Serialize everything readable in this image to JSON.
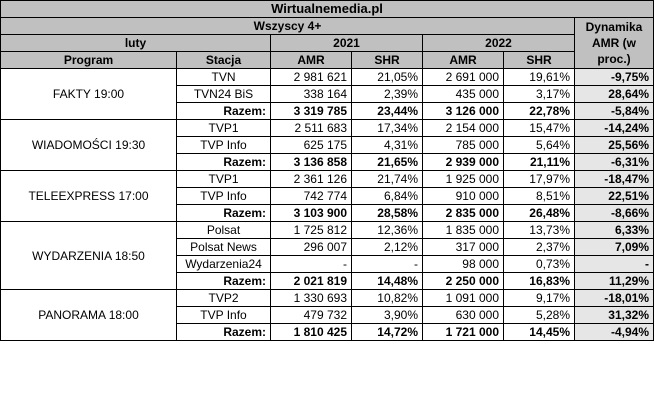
{
  "site": "Wirtualnemedia.pl",
  "audience": "Wszyscy 4+",
  "month": "luty",
  "year1": "2021",
  "year2": "2022",
  "dynamics_header": "Dynamika AMR (w proc.)",
  "col_program": "Program",
  "col_station": "Stacja",
  "col_amr": "AMR",
  "col_shr": "SHR",
  "groups": [
    {
      "program": "FAKTY 19:00",
      "rows": [
        {
          "station": "TVN",
          "amr21": "2 981 621",
          "shr21": "21,05%",
          "amr22": "2 691 000",
          "shr22": "19,61%",
          "dyn": "-9,75%"
        },
        {
          "station": "TVN24 BiS",
          "amr21": "338 164",
          "shr21": "2,39%",
          "amr22": "435 000",
          "shr22": "3,17%",
          "dyn": "28,64%"
        },
        {
          "station": "Razem:",
          "amr21": "3 319 785",
          "shr21": "23,44%",
          "amr22": "3 126 000",
          "shr22": "22,78%",
          "dyn": "-5,84%"
        }
      ]
    },
    {
      "program": "WIADOMOŚCI 19:30",
      "rows": [
        {
          "station": "TVP1",
          "amr21": "2 511 683",
          "shr21": "17,34%",
          "amr22": "2 154 000",
          "shr22": "15,47%",
          "dyn": "-14,24%"
        },
        {
          "station": "TVP Info",
          "amr21": "625 175",
          "shr21": "4,31%",
          "amr22": "785 000",
          "shr22": "5,64%",
          "dyn": "25,56%"
        },
        {
          "station": "Razem:",
          "amr21": "3 136 858",
          "shr21": "21,65%",
          "amr22": "2 939 000",
          "shr22": "21,11%",
          "dyn": "-6,31%"
        }
      ]
    },
    {
      "program": "TELEEXPRESS 17:00",
      "rows": [
        {
          "station": "TVP1",
          "amr21": "2 361 126",
          "shr21": "21,74%",
          "amr22": "1 925 000",
          "shr22": "17,97%",
          "dyn": "-18,47%"
        },
        {
          "station": "TVP Info",
          "amr21": "742 774",
          "shr21": "6,84%",
          "amr22": "910 000",
          "shr22": "8,51%",
          "dyn": "22,51%"
        },
        {
          "station": "Razem:",
          "amr21": "3 103 900",
          "shr21": "28,58%",
          "amr22": "2 835 000",
          "shr22": "26,48%",
          "dyn": "-8,66%"
        }
      ]
    },
    {
      "program": "WYDARZENIA 18:50",
      "rows": [
        {
          "station": "Polsat",
          "amr21": "1 725 812",
          "shr21": "12,36%",
          "amr22": "1 835 000",
          "shr22": "13,73%",
          "dyn": "6,33%"
        },
        {
          "station": "Polsat News",
          "amr21": "296 007",
          "shr21": "2,12%",
          "amr22": "317 000",
          "shr22": "2,37%",
          "dyn": "7,09%"
        },
        {
          "station": "Wydarzenia24",
          "amr21": "-",
          "shr21": "-",
          "amr22": "98 000",
          "shr22": "0,73%",
          "dyn": "-"
        },
        {
          "station": "Razem:",
          "amr21": "2 021 819",
          "shr21": "14,48%",
          "amr22": "2 250 000",
          "shr22": "16,83%",
          "dyn": "11,29%"
        }
      ]
    },
    {
      "program": "PANORAMA 18:00",
      "rows": [
        {
          "station": "TVP2",
          "amr21": "1 330 693",
          "shr21": "10,82%",
          "amr22": "1 091 000",
          "shr22": "9,17%",
          "dyn": "-18,01%"
        },
        {
          "station": "TVP Info",
          "amr21": "479 732",
          "shr21": "3,90%",
          "amr22": "630 000",
          "shr22": "5,28%",
          "dyn": "31,32%"
        },
        {
          "station": "Razem:",
          "amr21": "1 810 425",
          "shr21": "14,72%",
          "amr22": "1 721 000",
          "shr22": "14,45%",
          "dyn": "-4,94%"
        }
      ]
    }
  ]
}
